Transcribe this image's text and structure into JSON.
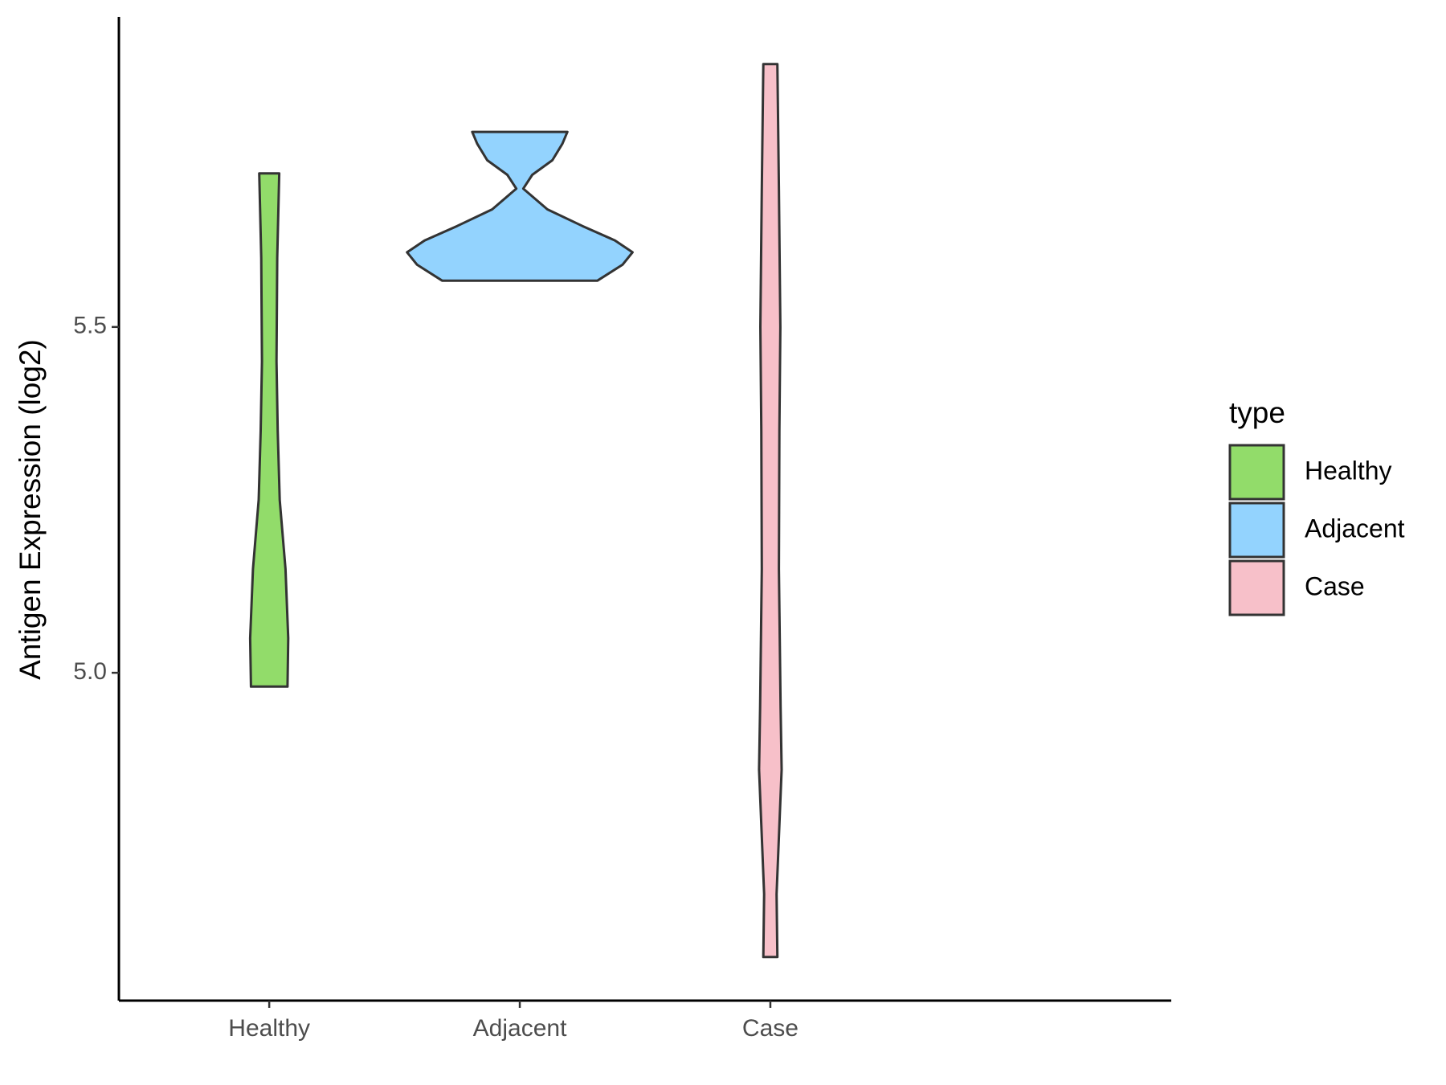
{
  "chart_data": {
    "type": "violin",
    "y_label": "Antigen Expression (log2)",
    "categories": [
      "Healthy",
      "Adjacent",
      "Case"
    ],
    "legend_title": "type",
    "legend_position": "right",
    "series": [
      {
        "name": "Healthy",
        "color": "#92dc6a",
        "y": [
          4.98,
          5.05,
          5.15,
          5.25,
          5.35,
          5.45,
          5.6,
          5.722
        ],
        "width": [
          0.073,
          0.076,
          0.065,
          0.042,
          0.034,
          0.029,
          0.032,
          0.04
        ]
      },
      {
        "name": "Adjacent",
        "color": "#93d3fe",
        "y": [
          5.567,
          5.59,
          5.608,
          5.625,
          5.646,
          5.67,
          5.7,
          5.72,
          5.741,
          5.765,
          5.782
        ],
        "width": [
          0.31,
          0.41,
          0.45,
          0.38,
          0.25,
          0.11,
          0.014,
          0.05,
          0.13,
          0.17,
          0.19
        ]
      },
      {
        "name": "Case",
        "color": "#f7c0c9",
        "y": [
          4.589,
          4.68,
          4.78,
          4.86,
          4.95,
          5.15,
          5.35,
          5.5,
          5.7,
          5.88
        ],
        "width": [
          0.028,
          0.025,
          0.036,
          0.045,
          0.041,
          0.034,
          0.036,
          0.04,
          0.034,
          0.028
        ]
      }
    ],
    "ylim": [
      4.526,
      5.946
    ],
    "yticks": [
      {
        "value": 5,
        "label": "5.0"
      },
      {
        "value": 5.5,
        "label": "5.5"
      }
    ]
  }
}
